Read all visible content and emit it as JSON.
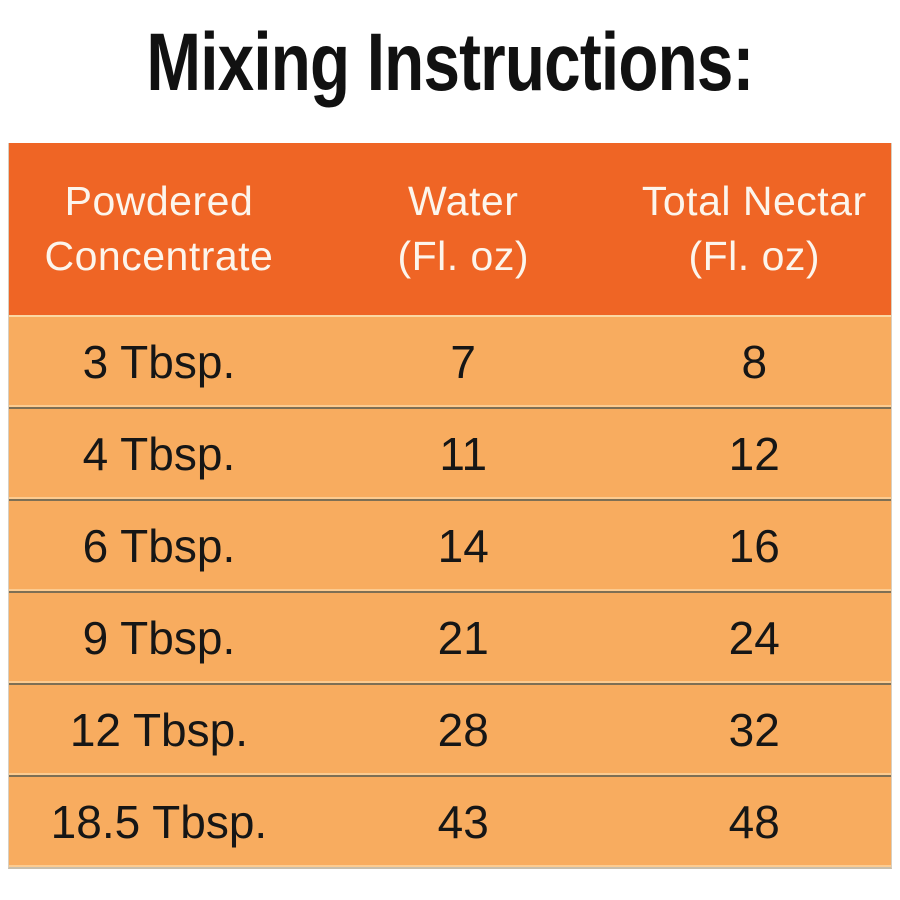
{
  "title": "Mixing Instructions:",
  "colors": {
    "header_bg": "#ef6525",
    "row_bg": "#f8ac5f",
    "header_text": "#fcf5ec",
    "body_text": "#161616",
    "divider": "#7e6f54",
    "cream_line": "#fbd8a3",
    "page_bg": "#ffffff"
  },
  "table": {
    "headers": [
      {
        "line1": "Powdered",
        "line2": "Concentrate"
      },
      {
        "line1": "Water",
        "line2": "(Fl. oz)"
      },
      {
        "line1": "Total Nectar",
        "line2": "(Fl. oz)"
      }
    ],
    "rows": [
      [
        "3 Tbsp.",
        "7",
        "8"
      ],
      [
        "4 Tbsp.",
        "11",
        "12"
      ],
      [
        "6 Tbsp.",
        "14",
        "16"
      ],
      [
        "9 Tbsp.",
        "21",
        "24"
      ],
      [
        "12 Tbsp.",
        "28",
        "32"
      ],
      [
        "18.5 Tbsp.",
        "43",
        "48"
      ]
    ]
  },
  "chart_data": {
    "type": "table",
    "title": "Mixing Instructions:",
    "columns": [
      "Powdered Concentrate",
      "Water (Fl. oz)",
      "Total Nectar (Fl. oz)"
    ],
    "rows": [
      [
        "3 Tbsp.",
        7,
        8
      ],
      [
        "4 Tbsp.",
        11,
        12
      ],
      [
        "6 Tbsp.",
        14,
        16
      ],
      [
        "9 Tbsp.",
        21,
        24
      ],
      [
        "12 Tbsp.",
        28,
        32
      ],
      [
        "18.5 Tbsp.",
        43,
        48
      ]
    ],
    "layout_hints": {
      "header_style": "dark-orange band, white text, two-line headers",
      "row_style": "light-orange bands separated by thin dark lines",
      "grid": "horizontal dividers only"
    }
  }
}
